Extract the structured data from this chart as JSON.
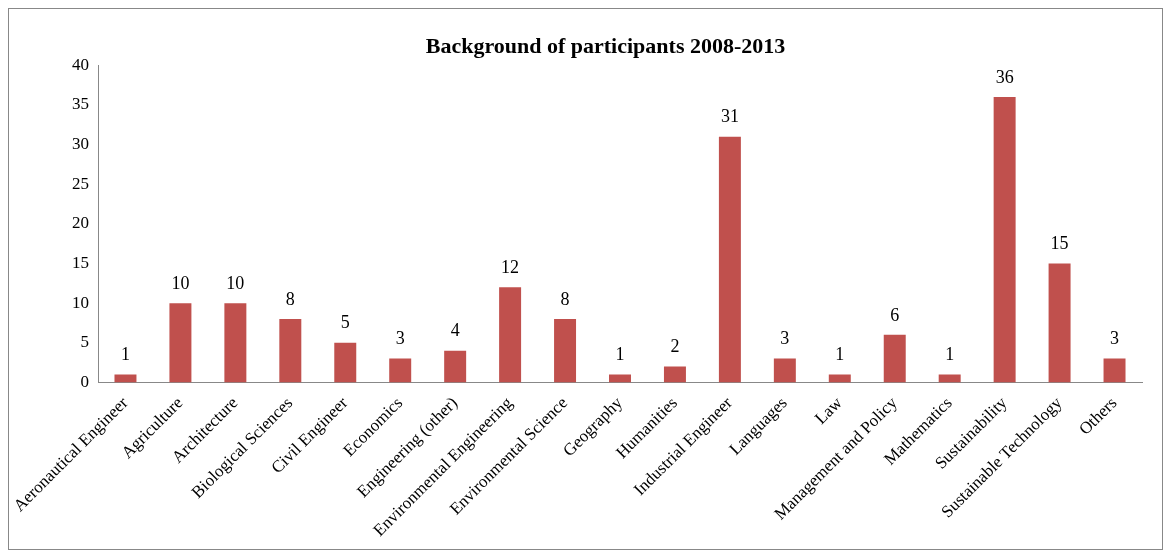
{
  "chart_data": {
    "type": "bar",
    "title": "Background of participants 2008-2013",
    "categories": [
      "Aeronautical Engineer",
      "Agriculture",
      "Architecture",
      "Biological Sciences",
      "Civil Engineer",
      "Economics",
      "Engineering (other)",
      "Environmental Engineering",
      "Environmental Science",
      "Geography",
      "Humanities",
      "Industrial Engineer",
      "Languages",
      "Law",
      "Management and Policy",
      "Mathematics",
      "Sustainability",
      "Sustainable Technology",
      "Others"
    ],
    "values": [
      1,
      10,
      10,
      8,
      5,
      3,
      4,
      12,
      8,
      1,
      2,
      31,
      3,
      1,
      6,
      1,
      36,
      15,
      3
    ],
    "color": "#c0504d",
    "ylim": [
      0,
      40
    ],
    "yticks": [
      0,
      5,
      10,
      15,
      20,
      25,
      30,
      35,
      40
    ],
    "grid": false,
    "data_labels": true
  }
}
